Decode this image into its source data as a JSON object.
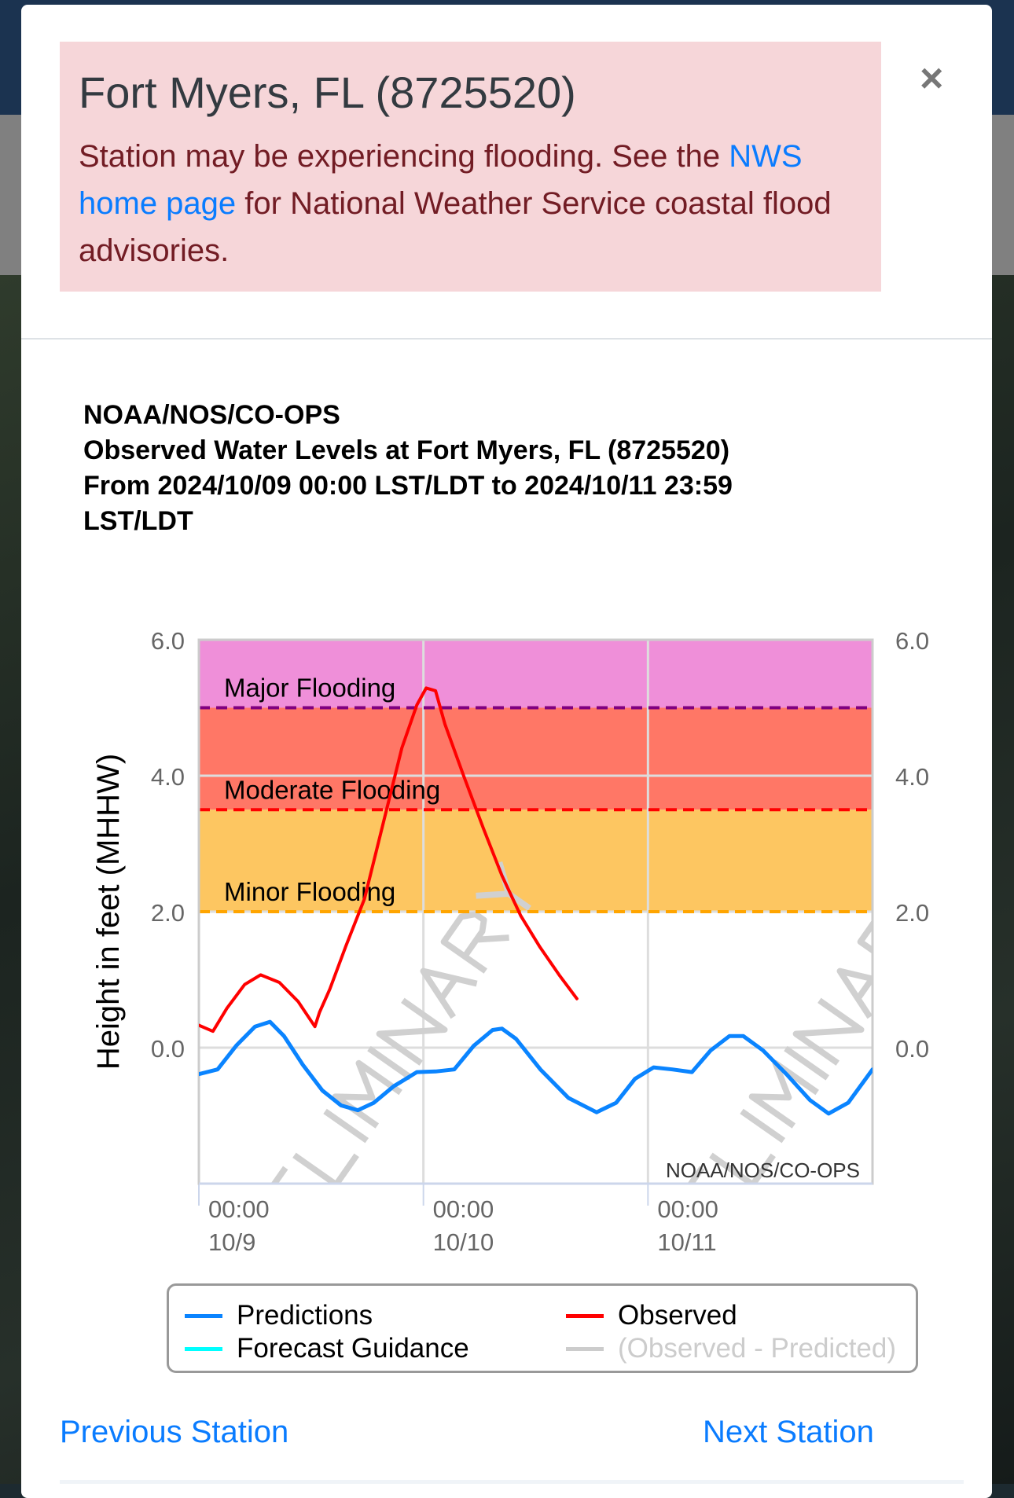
{
  "alert": {
    "title": "Fort Myers, FL (8725520)",
    "msg_pre": "Station may be experiencing flooding. See the ",
    "link": "NWS home page",
    "msg_post": " for National Weather Service coastal flood advisories.",
    "close_label": "×"
  },
  "chart_title": [
    "NOAA/NOS/CO-OPS",
    "Observed Water Levels at Fort Myers, FL (8725520)",
    "From 2024/10/09 00:00 LST/LDT to 2024/10/11 23:59",
    "LST/LDT"
  ],
  "nav": {
    "previous": "Previous Station",
    "next": "Next Station"
  },
  "chart_data": {
    "type": "line",
    "title": "Observed Water Levels at Fort Myers, FL (8725520)",
    "ylabel": "Height in feet (MHHW)",
    "xlabel": "",
    "xlim_hours": [
      0,
      72
    ],
    "ylim": [
      -2,
      6
    ],
    "yticks": [
      {
        "v": 0,
        "label": "0.0"
      },
      {
        "v": 2,
        "label": "2.0"
      },
      {
        "v": 4,
        "label": "4.0"
      },
      {
        "v": 6,
        "label": "6.0"
      }
    ],
    "xticks": [
      {
        "h": 0,
        "time": "00:00",
        "date": "10/9"
      },
      {
        "h": 24,
        "time": "00:00",
        "date": "10/10"
      },
      {
        "h": 48,
        "time": "00:00",
        "date": "10/11"
      }
    ],
    "thresholds": [
      {
        "name": "Major Flooding",
        "value": 5.0,
        "line_color": "#800080",
        "band_color": "#ef8fd9",
        "band_top": 6
      },
      {
        "name": "Moderate Flooding",
        "value": 3.5,
        "line_color": "#ff0000",
        "band_color": "#ff7766",
        "band_top": 5.0
      },
      {
        "name": "Minor Flooding",
        "value": 2.0,
        "line_color": "#ffa500",
        "band_color": "#fdc661",
        "band_top": 3.5
      }
    ],
    "watermark": "PRELIMINARY",
    "credit": "NOAA/NOS/CO-OPS",
    "series": [
      {
        "name": "Predictions",
        "color": "#0a84ff",
        "hours": [
          0,
          2,
          4,
          6,
          7.6,
          9.1,
          11.1,
          13.2,
          15.2,
          17,
          18.7,
          20.8,
          23.3,
          25.3,
          27.3,
          29.4,
          31.4,
          32.4,
          33.9,
          36.5,
          39.5,
          42.5,
          44.6,
          46.6,
          48.6,
          50.6,
          52.7,
          54.7,
          56.7,
          58.2,
          60.3,
          62.8,
          65.3,
          67.3,
          69.4,
          72
        ],
        "values": [
          -0.39,
          -0.32,
          0.03,
          0.31,
          0.38,
          0.17,
          -0.25,
          -0.63,
          -0.85,
          -0.92,
          -0.81,
          -0.57,
          -0.36,
          -0.35,
          -0.32,
          0.03,
          0.26,
          0.28,
          0.13,
          -0.32,
          -0.74,
          -0.95,
          -0.81,
          -0.46,
          -0.29,
          -0.32,
          -0.36,
          -0.04,
          0.17,
          0.17,
          -0.04,
          -0.39,
          -0.77,
          -0.97,
          -0.81,
          -0.32
        ]
      },
      {
        "name": "Observed",
        "color": "#ff0000",
        "hours": [
          0,
          1.5,
          3,
          4.9,
          6.6,
          8.6,
          10.6,
          12.4,
          12.9,
          14,
          15.7,
          17.7,
          19.7,
          21.7,
          23.3,
          24.3,
          25.3,
          26.3,
          28.3,
          30.4,
          32.4,
          34.4,
          36.4,
          38.5,
          40.4
        ],
        "values": [
          0.33,
          0.24,
          0.58,
          0.93,
          1.07,
          0.96,
          0.68,
          0.31,
          0.52,
          0.86,
          1.49,
          2.19,
          3.3,
          4.41,
          5.04,
          5.29,
          5.25,
          4.76,
          4.0,
          3.23,
          2.53,
          1.94,
          1.49,
          1.07,
          0.72
        ]
      }
    ],
    "legend": [
      {
        "label": "Predictions",
        "color": "#0a84ff"
      },
      {
        "label": "Forecast Guidance",
        "color": "#00ffff"
      },
      {
        "label": "Observed",
        "color": "#ff0000"
      },
      {
        "label": "(Observed - Predicted)",
        "color": "#cccccc"
      }
    ]
  }
}
